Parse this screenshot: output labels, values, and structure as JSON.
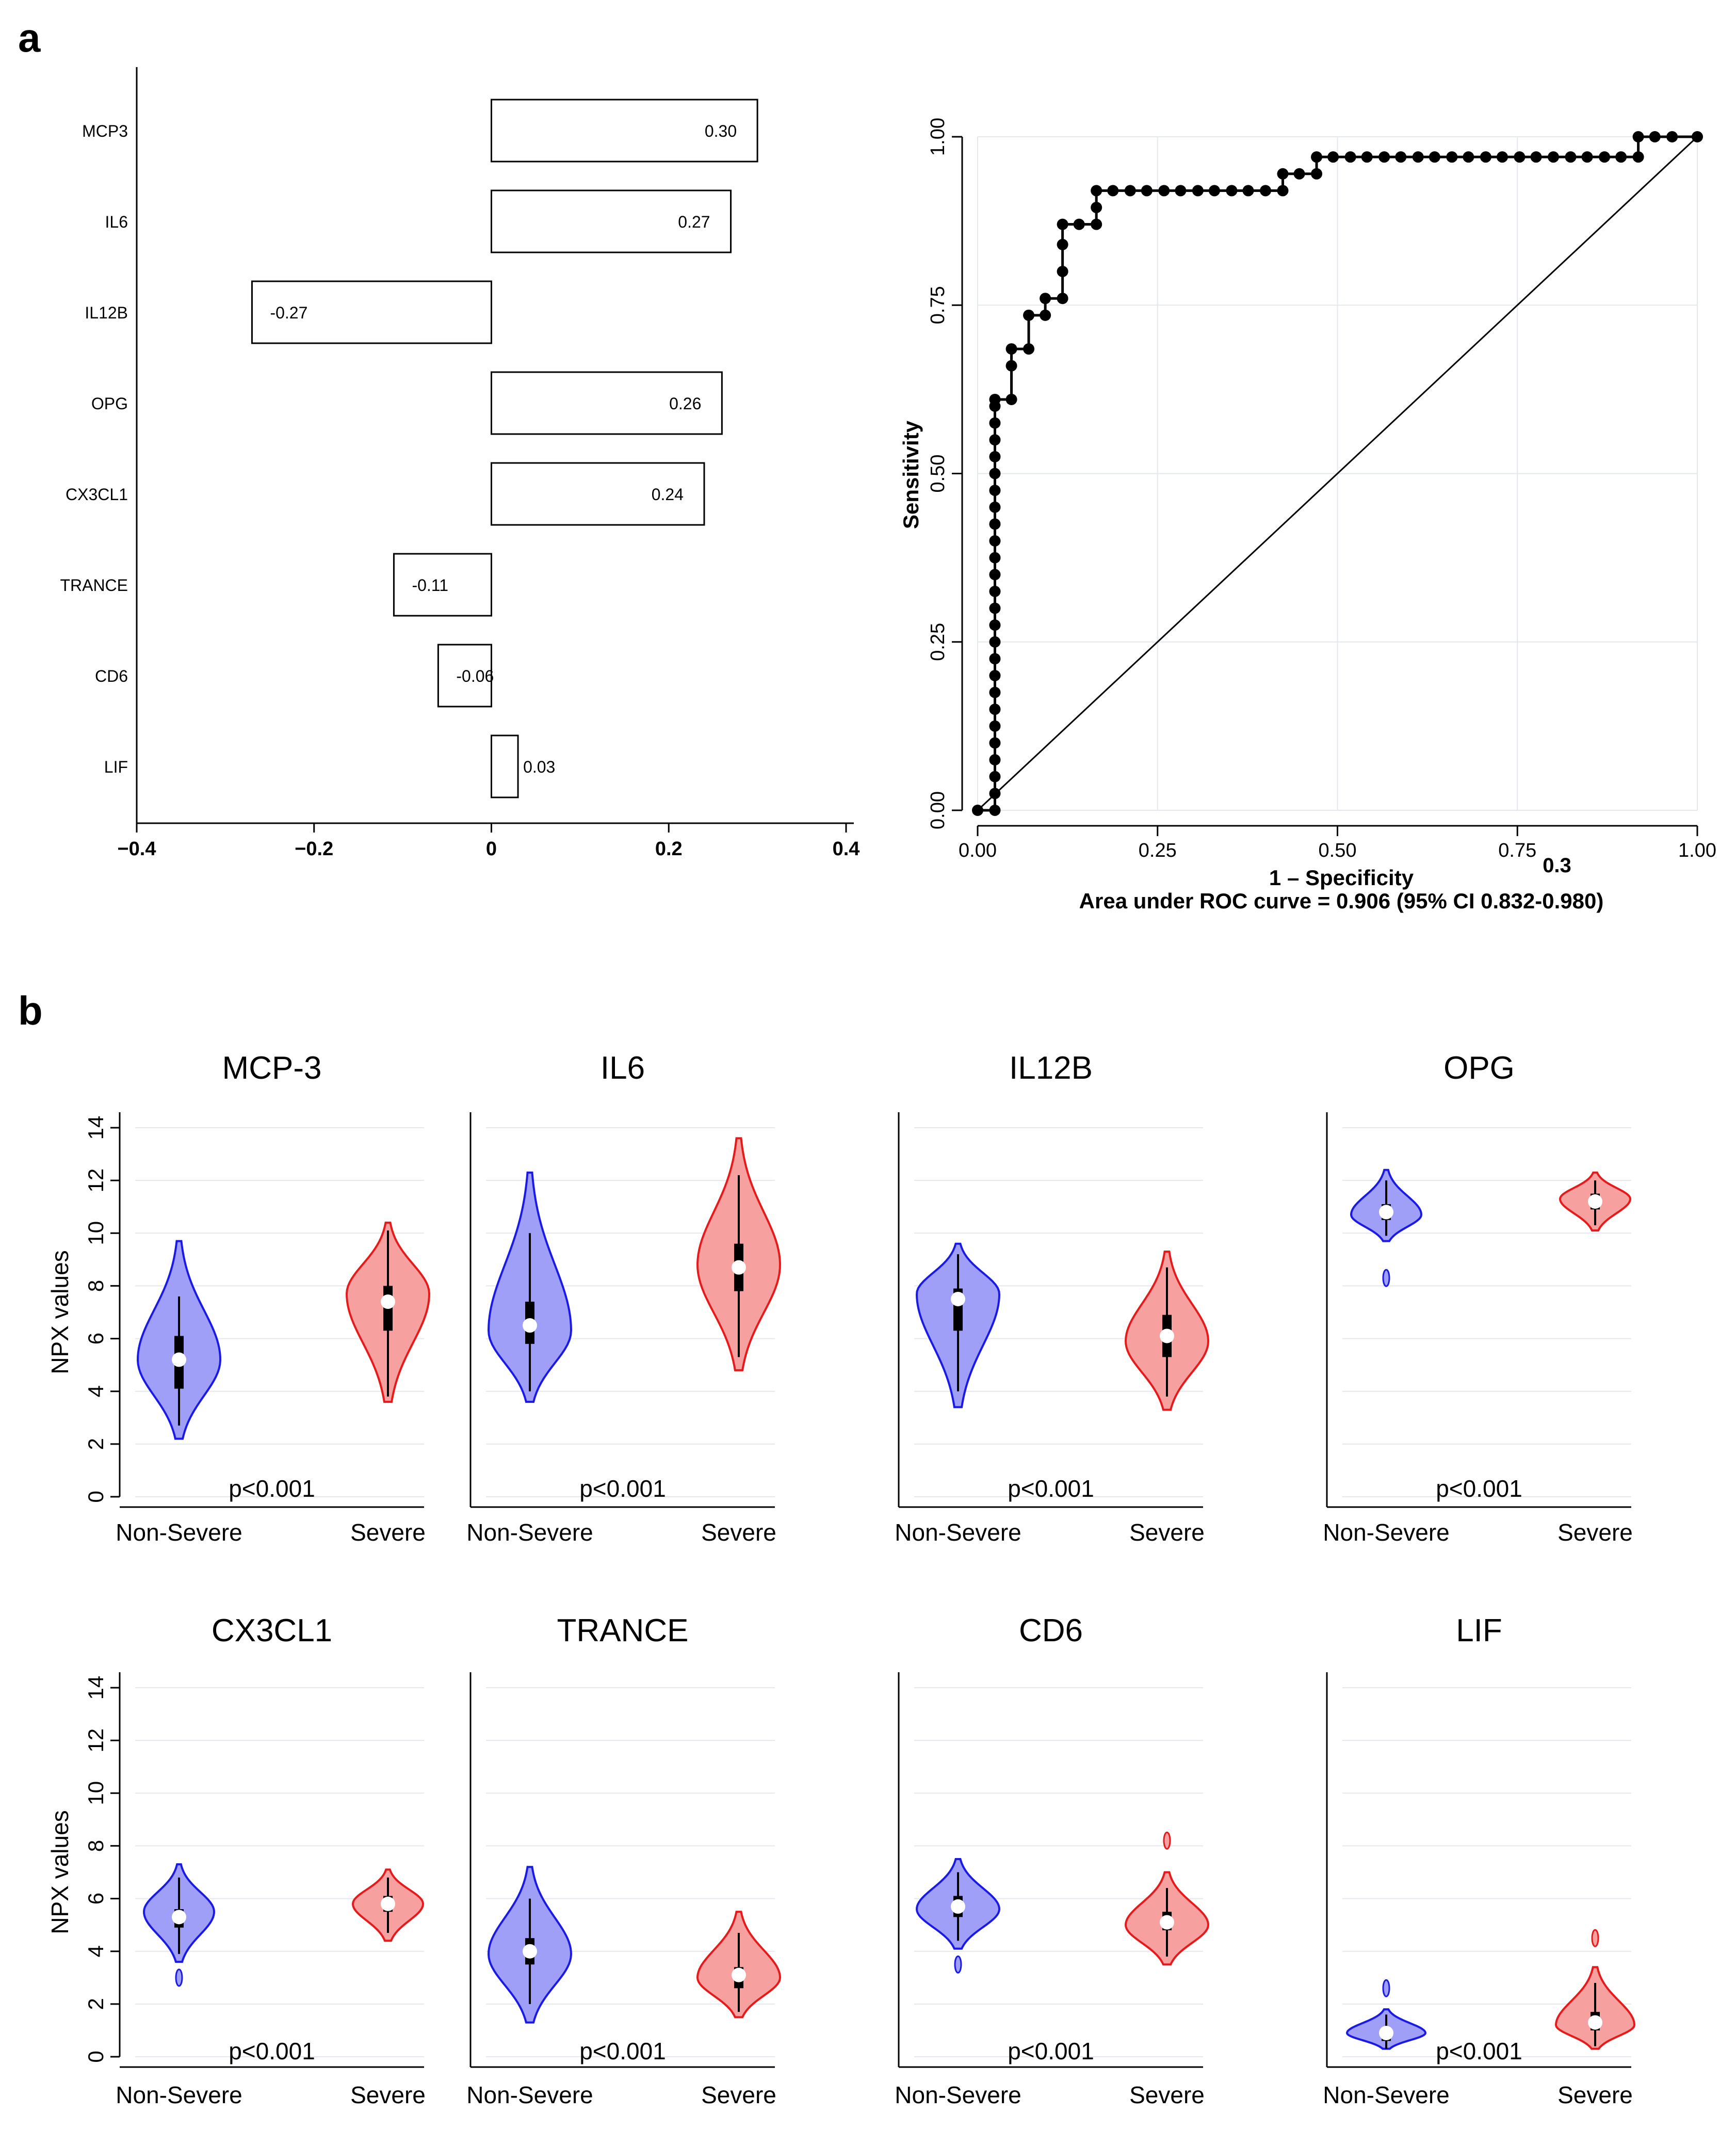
{
  "panel_labels": [
    "a",
    "b"
  ],
  "colors": {
    "non_severe_fill": "#9f9ff7",
    "non_severe_line": "#1a1ae6",
    "severe_fill": "#f7a0a0",
    "severe_line": "#e61a1a",
    "grid": "#e3e8ee",
    "box": "#000000",
    "median": "#ffffff"
  },
  "chart_data": [
    {
      "id": "coefficients",
      "type": "bar",
      "orientation": "horizontal",
      "categories": [
        "MCP3",
        "IL6",
        "IL12B",
        "OPG",
        "CX3CL1",
        "TRANCE",
        "CD6",
        "LIF"
      ],
      "values": [
        0.3,
        0.27,
        -0.27,
        0.26,
        0.24,
        -0.11,
        -0.06,
        0.03
      ],
      "value_labels": [
        "0.30",
        "0.27",
        "-0.27",
        "0.26",
        "0.24",
        "-0.11",
        "-0.06",
        "0.03"
      ],
      "xlim": [
        -0.4,
        0.4
      ],
      "xticks": [
        -0.4,
        -0.2,
        0,
        0.2,
        0.4
      ],
      "xtick_labels": [
        "−0.4",
        "−0.2",
        "0",
        "0.2",
        "0.4"
      ],
      "title": "",
      "xlabel": "",
      "ylabel": ""
    },
    {
      "id": "roc",
      "type": "line",
      "title": "",
      "xlabel": "1 – Specificity",
      "ylabel": "Sensitivity",
      "xlim": [
        0,
        1
      ],
      "ylim": [
        0,
        1
      ],
      "ticks": [
        0,
        0.25,
        0.5,
        0.75,
        1
      ],
      "xtick_labels": [
        "0.00",
        "0.25",
        "0.50",
        "0.75",
        "1.00"
      ],
      "ytick_labels": [
        "0.00",
        "0.25",
        "0.50",
        "0.75",
        "1.00"
      ],
      "stray_label": "0.3",
      "caption": "Area under ROC curve = 0.906 (95% CI 0.832-0.980)",
      "series": [
        {
          "name": "ROC",
          "x": [
            0,
            0.024,
            0.024,
            0.024,
            0.024,
            0.024,
            0.024,
            0.024,
            0.024,
            0.024,
            0.024,
            0.024,
            0.024,
            0.024,
            0.024,
            0.024,
            0.024,
            0.024,
            0.024,
            0.024,
            0.024,
            0.024,
            0.024,
            0.024,
            0.024,
            0.024,
            0.024,
            0.047,
            0.047,
            0.047,
            0.071,
            0.071,
            0.094,
            0.094,
            0.118,
            0.118,
            0.118,
            0.118,
            0.141,
            0.165,
            0.165,
            0.165,
            0.188,
            0.212,
            0.235,
            0.259,
            0.282,
            0.306,
            0.329,
            0.353,
            0.376,
            0.4,
            0.424,
            0.424,
            0.447,
            0.471,
            0.471,
            0.494,
            0.518,
            0.541,
            0.565,
            0.588,
            0.612,
            0.635,
            0.659,
            0.682,
            0.706,
            0.729,
            0.753,
            0.776,
            0.8,
            0.824,
            0.847,
            0.871,
            0.894,
            0.918,
            0.918,
            0.941,
            0.965,
            1
          ],
          "y": [
            0,
            0,
            0.025,
            0.05,
            0.075,
            0.1,
            0.125,
            0.15,
            0.175,
            0.2,
            0.225,
            0.25,
            0.275,
            0.3,
            0.325,
            0.35,
            0.375,
            0.4,
            0.425,
            0.45,
            0.475,
            0.5,
            0.525,
            0.55,
            0.575,
            0.6,
            0.61,
            0.61,
            0.66,
            0.685,
            0.685,
            0.735,
            0.735,
            0.76,
            0.76,
            0.8,
            0.84,
            0.87,
            0.87,
            0.87,
            0.895,
            0.92,
            0.92,
            0.92,
            0.92,
            0.92,
            0.92,
            0.92,
            0.92,
            0.92,
            0.92,
            0.92,
            0.92,
            0.945,
            0.945,
            0.945,
            0.97,
            0.97,
            0.97,
            0.97,
            0.97,
            0.97,
            0.97,
            0.97,
            0.97,
            0.97,
            0.97,
            0.97,
            0.97,
            0.97,
            0.97,
            0.97,
            0.97,
            0.97,
            0.97,
            0.97,
            1,
            1,
            1,
            1
          ]
        },
        {
          "name": "reference",
          "x": [
            0,
            1
          ],
          "y": [
            0,
            1
          ]
        }
      ]
    },
    {
      "id": "violins",
      "type": "violin",
      "ylabel": "NPX values",
      "ylim": [
        0,
        14
      ],
      "yticks": [
        0,
        2,
        4,
        6,
        8,
        10,
        12,
        14
      ],
      "ytick_labels": [
        "0",
        "2",
        "4",
        "6",
        "8",
        "10",
        "12",
        "14"
      ],
      "groups": [
        "Non-Severe",
        "Severe"
      ],
      "panels": [
        {
          "title": "MCP-3",
          "p_label": "p<0.001",
          "show_y_axis": true,
          "violins": [
            {
              "group": "Non-Severe",
              "y_min": 2.2,
              "y_max": 9.7,
              "median": 5.2,
              "q1": 4.1,
              "q3": 6.1,
              "whisker_low": 2.7,
              "whisker_high": 7.6,
              "mode": 5.2,
              "peak_width": 1.0
            },
            {
              "group": "Severe",
              "y_min": 3.6,
              "y_max": 10.4,
              "median": 7.4,
              "q1": 6.3,
              "q3": 8.0,
              "whisker_low": 3.8,
              "whisker_high": 10.1,
              "mode": 7.7,
              "peak_width": 1.0
            }
          ]
        },
        {
          "title": "IL6",
          "p_label": "p<0.001",
          "show_y_axis": false,
          "violins": [
            {
              "group": "Non-Severe",
              "y_min": 3.6,
              "y_max": 12.3,
              "median": 6.5,
              "q1": 5.8,
              "q3": 7.4,
              "whisker_low": 4.0,
              "whisker_high": 10.0,
              "mode": 6.3,
              "peak_width": 1.0
            },
            {
              "group": "Severe",
              "y_min": 4.8,
              "y_max": 13.6,
              "median": 8.7,
              "q1": 7.8,
              "q3": 9.6,
              "whisker_low": 5.3,
              "whisker_high": 12.2,
              "mode": 8.8,
              "peak_width": 1.0
            }
          ]
        },
        {
          "title": "IL12B",
          "p_label": "p<0.001",
          "show_y_axis": false,
          "violins": [
            {
              "group": "Non-Severe",
              "y_min": 3.4,
              "y_max": 9.6,
              "median": 7.5,
              "q1": 6.3,
              "q3": 7.9,
              "whisker_low": 4.0,
              "whisker_high": 9.2,
              "mode": 7.7,
              "peak_width": 1.0
            },
            {
              "group": "Severe",
              "y_min": 3.3,
              "y_max": 9.3,
              "median": 6.1,
              "q1": 5.3,
              "q3": 6.9,
              "whisker_low": 3.8,
              "whisker_high": 8.7,
              "mode": 5.9,
              "peak_width": 1.0
            }
          ]
        },
        {
          "title": "OPG",
          "p_label": "p<0.001",
          "show_y_axis": false,
          "violins": [
            {
              "group": "Non-Severe",
              "y_min": 9.7,
              "y_max": 12.4,
              "median": 10.8,
              "q1": 10.5,
              "q3": 11.1,
              "whisker_low": 9.9,
              "whisker_high": 12.0,
              "mode": 10.7,
              "peak_width": 0.85,
              "outliers": [
                8.3
              ]
            },
            {
              "group": "Severe",
              "y_min": 10.1,
              "y_max": 12.3,
              "median": 11.2,
              "q1": 10.9,
              "q3": 11.5,
              "whisker_low": 10.3,
              "whisker_high": 12.0,
              "mode": 11.3,
              "peak_width": 0.85
            }
          ]
        },
        {
          "title": "CX3CL1",
          "p_label": "p<0.001",
          "show_y_axis": true,
          "violins": [
            {
              "group": "Non-Severe",
              "y_min": 3.6,
              "y_max": 7.3,
              "median": 5.3,
              "q1": 4.9,
              "q3": 5.6,
              "whisker_low": 3.9,
              "whisker_high": 6.8,
              "mode": 5.5,
              "peak_width": 0.85,
              "outliers": [
                3.0
              ]
            },
            {
              "group": "Severe",
              "y_min": 4.4,
              "y_max": 7.1,
              "median": 5.8,
              "q1": 5.5,
              "q3": 6.1,
              "whisker_low": 4.7,
              "whisker_high": 6.8,
              "mode": 5.8,
              "peak_width": 0.85
            }
          ]
        },
        {
          "title": "TRANCE",
          "p_label": "p<0.001",
          "show_y_axis": false,
          "violins": [
            {
              "group": "Non-Severe",
              "y_min": 1.3,
              "y_max": 7.2,
              "median": 4.0,
              "q1": 3.5,
              "q3": 4.5,
              "whisker_low": 2.0,
              "whisker_high": 6.0,
              "mode": 3.9,
              "peak_width": 1.0
            },
            {
              "group": "Severe",
              "y_min": 1.5,
              "y_max": 5.5,
              "median": 3.1,
              "q1": 2.6,
              "q3": 3.4,
              "whisker_low": 1.7,
              "whisker_high": 4.7,
              "mode": 3.0,
              "peak_width": 1.0
            }
          ]
        },
        {
          "title": "CD6",
          "p_label": "p<0.001",
          "show_y_axis": false,
          "violins": [
            {
              "group": "Non-Severe",
              "y_min": 4.1,
              "y_max": 7.5,
              "median": 5.7,
              "q1": 5.3,
              "q3": 6.1,
              "whisker_low": 4.4,
              "whisker_high": 7.0,
              "mode": 5.6,
              "peak_width": 1.0,
              "outliers": [
                3.5
              ]
            },
            {
              "group": "Severe",
              "y_min": 3.5,
              "y_max": 7.0,
              "median": 5.1,
              "q1": 4.8,
              "q3": 5.5,
              "whisker_low": 3.8,
              "whisker_high": 6.4,
              "mode": 5.0,
              "peak_width": 1.0,
              "outliers": [
                8.2
              ]
            }
          ]
        },
        {
          "title": "LIF",
          "p_label": "p<0.001",
          "show_y_axis": false,
          "violins": [
            {
              "group": "Non-Severe",
              "y_min": 0.3,
              "y_max": 1.8,
              "median": 0.9,
              "q1": 0.6,
              "q3": 1.1,
              "whisker_low": 0.3,
              "whisker_high": 1.6,
              "mode": 0.9,
              "peak_width": 0.95,
              "outliers": [
                2.6
              ]
            },
            {
              "group": "Severe",
              "y_min": 0.3,
              "y_max": 3.4,
              "median": 1.3,
              "q1": 1.0,
              "q3": 1.7,
              "whisker_low": 0.4,
              "whisker_high": 2.8,
              "mode": 1.2,
              "peak_width": 0.95,
              "outliers": [
                4.5
              ]
            }
          ]
        }
      ]
    }
  ]
}
